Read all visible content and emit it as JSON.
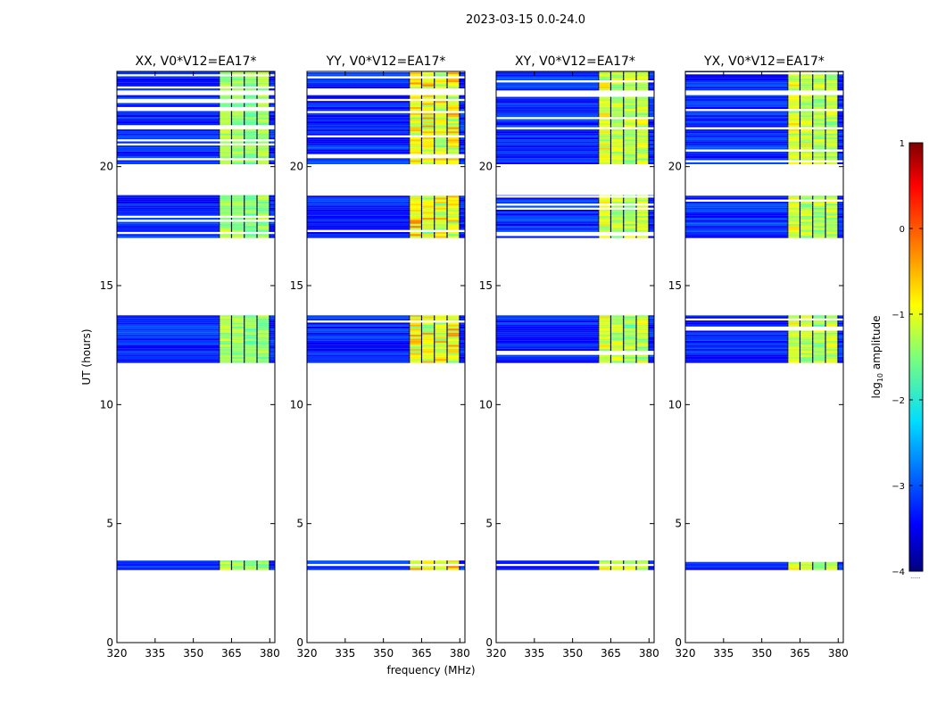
{
  "figure_title": "2023-03-15 0.0-24.0",
  "colorbar_label": "log10 amplitude",
  "colorbar_ticks": [
    1,
    0,
    -1,
    -2,
    -3,
    -4
  ],
  "colorbar_ticklabels": [
    "1",
    "0",
    "−1",
    "−2",
    "−3",
    "−4"
  ],
  "colorbar_footnote": "......",
  "chart_data": {
    "type": "heatmap",
    "xlabel": "frequency (MHz)",
    "ylabel": "UT (hours)",
    "xlim": [
      320,
      382
    ],
    "ylim": [
      0,
      24
    ],
    "xticks": [
      320,
      335,
      350,
      365,
      380
    ],
    "yticks": [
      0,
      5,
      10,
      15,
      20
    ],
    "color_scale": {
      "min": -4,
      "max": 1,
      "colormap": "jet"
    },
    "time_blocks_hours": [
      [
        3.05,
        3.45
      ],
      [
        11.75,
        13.75
      ],
      [
        17.0,
        18.8
      ],
      [
        20.1,
        20.55
      ],
      [
        20.55,
        23.0
      ],
      [
        23.2,
        24.0
      ]
    ],
    "band_channels_MHz": [
      {
        "range": [
          320,
          360
        ],
        "level": -3.2
      },
      {
        "range": [
          360.2,
          364.8
        ],
        "level": -1.3
      },
      {
        "range": [
          365.2,
          369.8
        ],
        "level": -1.4
      },
      {
        "range": [
          370.2,
          374.8
        ],
        "level": -1.5
      },
      {
        "range": [
          375.2,
          379.8
        ],
        "level": -1.4
      },
      {
        "range": [
          380,
          382
        ],
        "level": -3.2
      }
    ],
    "panels": [
      {
        "title": "XX, V0*V12=EA17*",
        "peak_level": -1.0
      },
      {
        "title": "YY, V0*V12=EA17*",
        "peak_level": -0.1
      },
      {
        "title": "XY, V0*V12=EA17*",
        "peak_level": -0.6
      },
      {
        "title": "YX, V0*V12=EA17*",
        "peak_level": -0.6
      }
    ]
  }
}
